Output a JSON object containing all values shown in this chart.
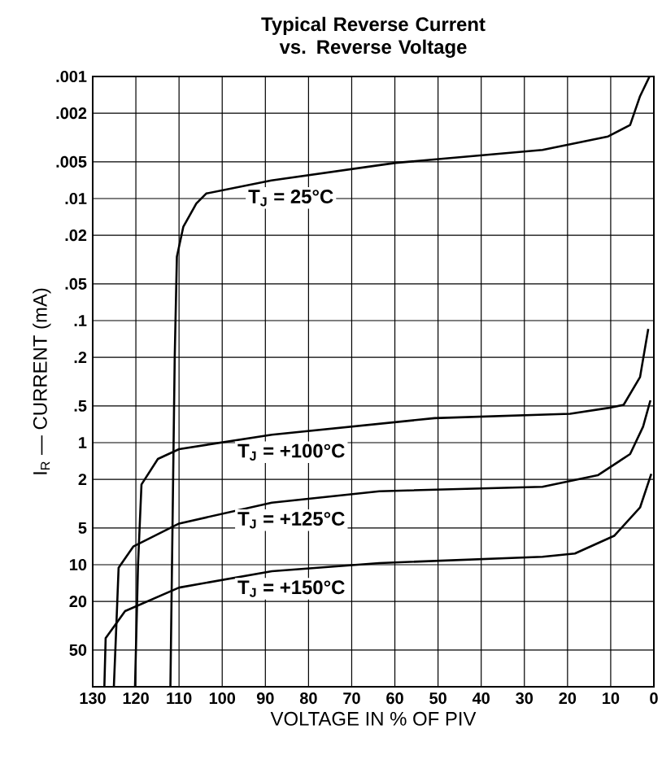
{
  "chart_data": {
    "type": "line",
    "title": "Typical Reverse Current vs. Reverse Voltage",
    "xlabel": "VOLTAGE IN % OF PIV",
    "ylabel": "I$_{R}$ — CURRENT (mA)",
    "log": "y",
    "grid": true,
    "xlim": [
      130,
      0
    ],
    "ylim": [
      100,
      0.001
    ],
    "xticks": [
      130,
      120,
      110,
      100,
      90,
      80,
      70,
      60,
      50,
      40,
      30,
      20,
      10,
      0
    ],
    "yticks": [
      {
        "value": 0.001,
        "label": ".001"
      },
      {
        "value": 0.002,
        "label": ".002"
      },
      {
        "value": 0.005,
        "label": ".005"
      },
      {
        "value": 0.01,
        "label": ".01"
      },
      {
        "value": 0.02,
        "label": ".02"
      },
      {
        "value": 0.05,
        "label": ".05"
      },
      {
        "value": 0.1,
        "label": ".1"
      },
      {
        "value": 0.2,
        "label": ".2"
      },
      {
        "value": 0.5,
        "label": ".5"
      },
      1,
      2,
      5,
      10,
      20,
      50
    ],
    "series": [
      {
        "color": "#000000",
        "x": [
          112,
          111,
          110.5,
          109,
          106,
          103.7,
          88.6,
          59.8,
          25.8,
          10.6,
          5.5,
          3.2,
          1
        ],
        "values": [
          100,
          0.2,
          0.03,
          0.017,
          0.011,
          0.0091,
          0.0071,
          0.0051,
          0.004,
          0.0031,
          0.0025,
          0.00145,
          0.001
        ]
      },
      {
        "color": "#000000",
        "x": [
          120.2,
          119.5,
          118.7,
          114.9,
          110,
          88.5,
          50.8,
          19.4,
          10.6,
          7,
          3.2,
          1.3
        ],
        "values": [
          100,
          10,
          2.2,
          1.36,
          1.13,
          0.86,
          0.63,
          0.58,
          0.52,
          0.49,
          0.29,
          0.117
        ]
      },
      {
        "color": "#000000",
        "x": [
          125.1,
          124.5,
          124,
          120.6,
          110,
          88.5,
          63.6,
          25.8,
          13,
          5.5,
          2.5,
          0.8
        ],
        "values": [
          100,
          30,
          10.6,
          7.1,
          4.6,
          3.1,
          2.5,
          2.3,
          1.85,
          1.24,
          0.74,
          0.45
        ]
      },
      {
        "color": "#000000",
        "x": [
          127.3,
          127,
          122.5,
          110,
          88.5,
          63.6,
          25.8,
          18.3,
          9.2,
          3.2,
          0.6
        ],
        "values": [
          100,
          40,
          24,
          15.4,
          11.3,
          9.7,
          8.6,
          8.1,
          5.8,
          3.4,
          1.8
        ]
      }
    ],
    "annotations": [
      "T$_{J}$ = 25°C",
      "T$_{J}$ = +100°C",
      "T$_{J}$ = +125°C",
      "T$_{J}$ = +150°C"
    ]
  }
}
